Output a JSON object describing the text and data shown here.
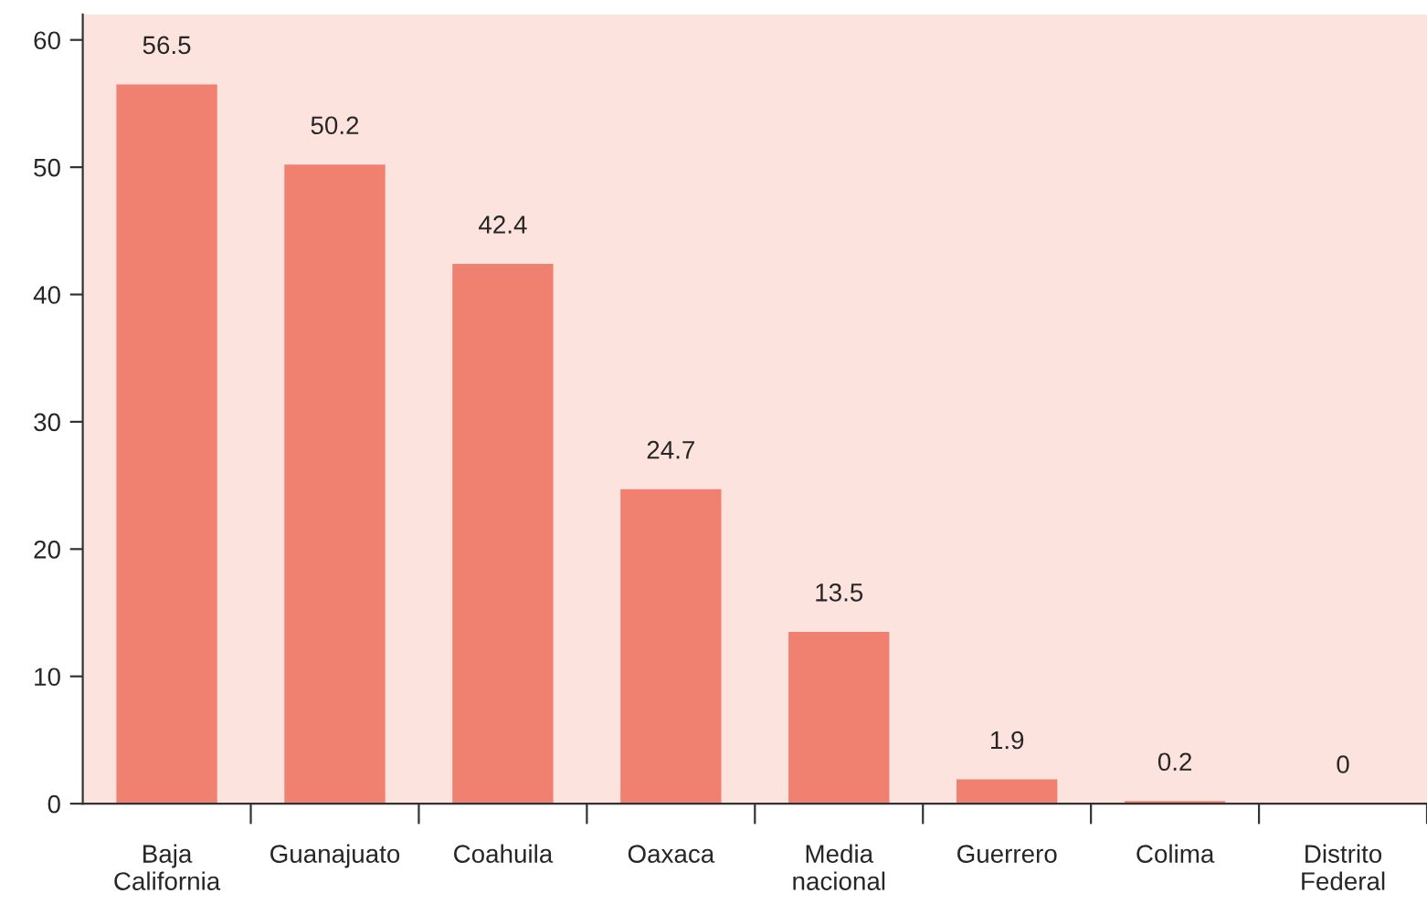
{
  "chart_data": {
    "type": "bar",
    "categories": [
      "Baja California",
      "Guanajuato",
      "Coahuila",
      "Oaxaca",
      "Media nacional",
      "Guerrero",
      "Colima",
      "Distrito Federal"
    ],
    "values": [
      56.5,
      50.2,
      42.4,
      24.7,
      13.5,
      1.9,
      0.2,
      0
    ],
    "color": "#f08070",
    "ylim": [
      0,
      62
    ],
    "yticks": [
      0,
      10,
      20,
      30,
      40,
      50,
      60
    ],
    "data_labels": true,
    "grid": false,
    "legend": false
  }
}
